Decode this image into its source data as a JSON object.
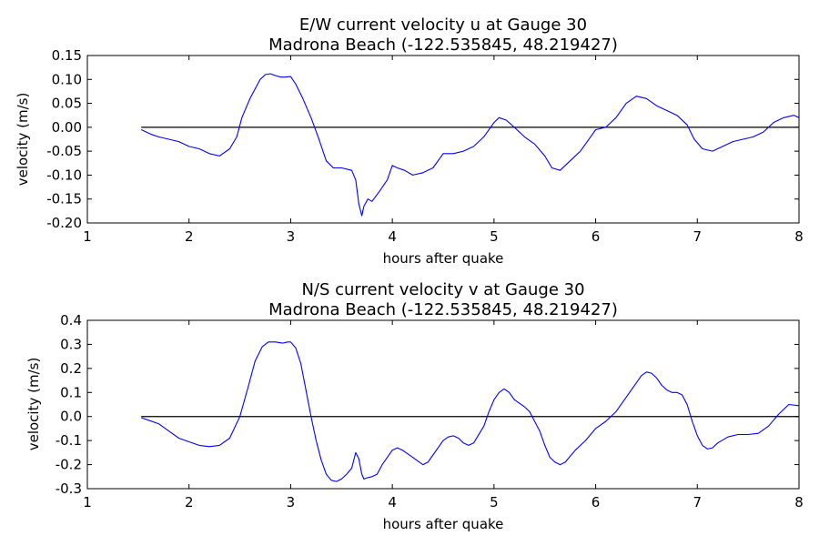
{
  "chart_data": [
    {
      "type": "line",
      "title_line1": "E/W current velocity u at Gauge 30",
      "title_line2": "Madrona Beach  (-122.535845, 48.219427)",
      "xlabel": "hours after quake",
      "ylabel": "velocity (m/s)",
      "xlim": [
        1,
        8
      ],
      "ylim": [
        -0.2,
        0.15
      ],
      "xticks": [
        "1",
        "2",
        "3",
        "4",
        "5",
        "6",
        "7",
        "8"
      ],
      "xtick_values": [
        1,
        2,
        3,
        4,
        5,
        6,
        7,
        8
      ],
      "yticks": [
        "-0.20",
        "-0.15",
        "-0.10",
        "-0.05",
        "0.00",
        "0.05",
        "0.10",
        "0.15"
      ],
      "ytick_values": [
        -0.2,
        -0.15,
        -0.1,
        -0.05,
        0.0,
        0.05,
        0.1,
        0.15
      ],
      "zero_line": true,
      "series_color": "#0000ff",
      "series": [
        {
          "x": [
            1.53,
            1.58,
            1.63,
            1.7,
            1.8,
            1.9,
            2.0,
            2.1,
            2.2,
            2.3,
            2.4,
            2.47,
            2.52,
            2.6,
            2.7,
            2.75,
            2.8,
            2.85,
            2.9,
            2.95,
            3.0,
            3.05,
            3.12,
            3.2,
            3.27,
            3.35,
            3.42,
            3.5,
            3.6,
            3.64,
            3.67,
            3.7,
            3.72,
            3.76,
            3.8,
            3.87,
            3.95,
            4.0,
            4.05,
            4.12,
            4.2,
            4.3,
            4.4,
            4.45,
            4.5,
            4.6,
            4.7,
            4.8,
            4.9,
            5.0,
            5.05,
            5.12,
            5.2,
            5.3,
            5.4,
            5.5,
            5.57,
            5.65,
            5.75,
            5.85,
            5.95,
            6.0,
            6.1,
            6.2,
            6.3,
            6.4,
            6.5,
            6.6,
            6.7,
            6.8,
            6.9,
            6.97,
            7.05,
            7.15,
            7.25,
            7.35,
            7.45,
            7.55,
            7.65,
            7.75,
            7.85,
            7.95,
            8.0
          ],
          "y": [
            -0.005,
            -0.01,
            -0.015,
            -0.02,
            -0.025,
            -0.03,
            -0.04,
            -0.045,
            -0.055,
            -0.06,
            -0.045,
            -0.02,
            0.02,
            0.06,
            0.1,
            0.11,
            0.112,
            0.108,
            0.105,
            0.105,
            0.106,
            0.09,
            0.06,
            0.02,
            -0.02,
            -0.07,
            -0.085,
            -0.085,
            -0.09,
            -0.11,
            -0.16,
            -0.185,
            -0.165,
            -0.15,
            -0.155,
            -0.135,
            -0.11,
            -0.08,
            -0.085,
            -0.09,
            -0.1,
            -0.095,
            -0.085,
            -0.07,
            -0.055,
            -0.055,
            -0.05,
            -0.04,
            -0.02,
            0.01,
            0.02,
            0.015,
            0.0,
            -0.02,
            -0.035,
            -0.06,
            -0.085,
            -0.09,
            -0.07,
            -0.05,
            -0.02,
            -0.005,
            0.0,
            0.02,
            0.05,
            0.065,
            0.06,
            0.045,
            0.035,
            0.025,
            0.005,
            -0.025,
            -0.045,
            -0.05,
            -0.04,
            -0.03,
            -0.025,
            -0.02,
            -0.01,
            0.01,
            0.02,
            0.025,
            0.02
          ]
        }
      ]
    },
    {
      "type": "line",
      "title_line1": "N/S current velocity v at Gauge 30",
      "title_line2": "Madrona Beach  (-122.535845, 48.219427)",
      "xlabel": "hours after quake",
      "ylabel": "velocity (m/s)",
      "xlim": [
        1,
        8
      ],
      "ylim": [
        -0.3,
        0.4
      ],
      "xticks": [
        "1",
        "2",
        "3",
        "4",
        "5",
        "6",
        "7",
        "8"
      ],
      "xtick_values": [
        1,
        2,
        3,
        4,
        5,
        6,
        7,
        8
      ],
      "yticks": [
        "-0.3",
        "-0.2",
        "-0.1",
        "0.0",
        "0.1",
        "0.2",
        "0.3",
        "0.4"
      ],
      "ytick_values": [
        -0.3,
        -0.2,
        -0.1,
        0.0,
        0.1,
        0.2,
        0.3,
        0.4
      ],
      "zero_line": true,
      "series_color": "#0000ff",
      "series": [
        {
          "x": [
            1.53,
            1.6,
            1.7,
            1.8,
            1.9,
            2.0,
            2.1,
            2.2,
            2.3,
            2.4,
            2.5,
            2.58,
            2.65,
            2.72,
            2.78,
            2.85,
            2.92,
            2.97,
            3.0,
            3.05,
            3.1,
            3.15,
            3.2,
            3.25,
            3.3,
            3.35,
            3.4,
            3.45,
            3.5,
            3.55,
            3.6,
            3.64,
            3.67,
            3.7,
            3.72,
            3.75,
            3.8,
            3.85,
            3.9,
            3.95,
            4.0,
            4.05,
            4.1,
            4.2,
            4.3,
            4.35,
            4.4,
            4.45,
            4.5,
            4.55,
            4.6,
            4.65,
            4.7,
            4.75,
            4.8,
            4.9,
            4.95,
            5.0,
            5.05,
            5.1,
            5.15,
            5.2,
            5.3,
            5.35,
            5.4,
            5.45,
            5.5,
            5.55,
            5.6,
            5.65,
            5.7,
            5.8,
            5.9,
            6.0,
            6.1,
            6.2,
            6.3,
            6.4,
            6.45,
            6.5,
            6.55,
            6.6,
            6.65,
            6.7,
            6.75,
            6.8,
            6.85,
            6.9,
            6.95,
            7.0,
            7.05,
            7.1,
            7.15,
            7.2,
            7.3,
            7.4,
            7.5,
            7.6,
            7.7,
            7.8,
            7.9,
            8.0
          ],
          "y": [
            -0.005,
            -0.015,
            -0.03,
            -0.06,
            -0.09,
            -0.105,
            -0.12,
            -0.125,
            -0.12,
            -0.09,
            0.0,
            0.12,
            0.23,
            0.29,
            0.31,
            0.31,
            0.305,
            0.31,
            0.31,
            0.285,
            0.22,
            0.11,
            0.0,
            -0.1,
            -0.18,
            -0.24,
            -0.265,
            -0.27,
            -0.26,
            -0.24,
            -0.215,
            -0.15,
            -0.175,
            -0.24,
            -0.26,
            -0.255,
            -0.25,
            -0.24,
            -0.2,
            -0.17,
            -0.14,
            -0.13,
            -0.14,
            -0.17,
            -0.2,
            -0.19,
            -0.16,
            -0.13,
            -0.1,
            -0.085,
            -0.08,
            -0.09,
            -0.11,
            -0.12,
            -0.11,
            -0.04,
            0.02,
            0.07,
            0.1,
            0.115,
            0.1,
            0.07,
            0.04,
            0.02,
            -0.02,
            -0.06,
            -0.12,
            -0.17,
            -0.19,
            -0.2,
            -0.19,
            -0.14,
            -0.1,
            -0.05,
            -0.02,
            0.02,
            0.08,
            0.14,
            0.17,
            0.185,
            0.18,
            0.16,
            0.13,
            0.11,
            0.1,
            0.1,
            0.09,
            0.05,
            -0.02,
            -0.08,
            -0.12,
            -0.135,
            -0.13,
            -0.11,
            -0.085,
            -0.075,
            -0.075,
            -0.07,
            -0.04,
            0.01,
            0.05,
            0.045
          ]
        }
      ]
    }
  ]
}
